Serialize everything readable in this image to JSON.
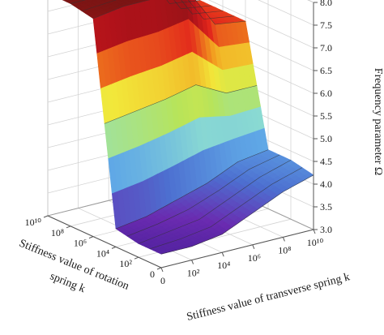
{
  "chart_data": {
    "type": "surface3d",
    "x_axis": {
      "label": "Stiffness value of transverse spring k",
      "tick_labels": [
        "0",
        "10²",
        "10⁴",
        "10⁶",
        "10⁸",
        "10¹⁰"
      ],
      "log_exponents": [
        0,
        2,
        4,
        6,
        8,
        10
      ]
    },
    "y_axis": {
      "label_lines": [
        "Stiffness value of rotation",
        "spring k"
      ],
      "tick_labels": [
        "0",
        "10²",
        "10⁴",
        "10⁶",
        "10⁸",
        "10¹⁰"
      ],
      "log_exponents": [
        0,
        2,
        4,
        6,
        8,
        10
      ]
    },
    "z_axis": {
      "label": "Frequency parameter Ω",
      "tick_labels": [
        "3.0",
        "3.5",
        "4.0",
        "4.5",
        "5.0",
        "5.5",
        "6.0",
        "6.5",
        "7.0",
        "7.5",
        "8.0"
      ],
      "values": [
        3.0,
        3.5,
        4.0,
        4.5,
        5.0,
        5.5,
        6.0,
        6.5,
        7.0,
        7.5,
        8.0
      ],
      "zlim": [
        3.0,
        8.0
      ]
    },
    "surface": {
      "x_exponents": [
        0,
        2,
        4,
        6,
        8,
        10
      ],
      "y_exponents": [
        0,
        2,
        4,
        6,
        8,
        10
      ],
      "z": [
        [
          3.3,
          3.3,
          3.4,
          3.7,
          4.0,
          4.2
        ],
        [
          3.3,
          3.4,
          3.5,
          3.8,
          4.1,
          4.3
        ],
        [
          3.4,
          3.5,
          3.7,
          3.9,
          4.2,
          4.3
        ],
        [
          7.8,
          7.9,
          7.9,
          8.0,
          7.0,
          6.9
        ],
        [
          7.9,
          7.9,
          8.0,
          8.0,
          7.0,
          6.9
        ],
        [
          7.9,
          8.0,
          8.0,
          8.0,
          7.0,
          6.9
        ]
      ]
    },
    "colormap": [
      "#3a1a8f",
      "#6a2bb0",
      "#4d6fd0",
      "#5fa7e6",
      "#8fe0d0",
      "#b7e45a",
      "#f2e83a",
      "#f29a1e",
      "#e2261c",
      "#b0121a",
      "#6e1612"
    ]
  }
}
